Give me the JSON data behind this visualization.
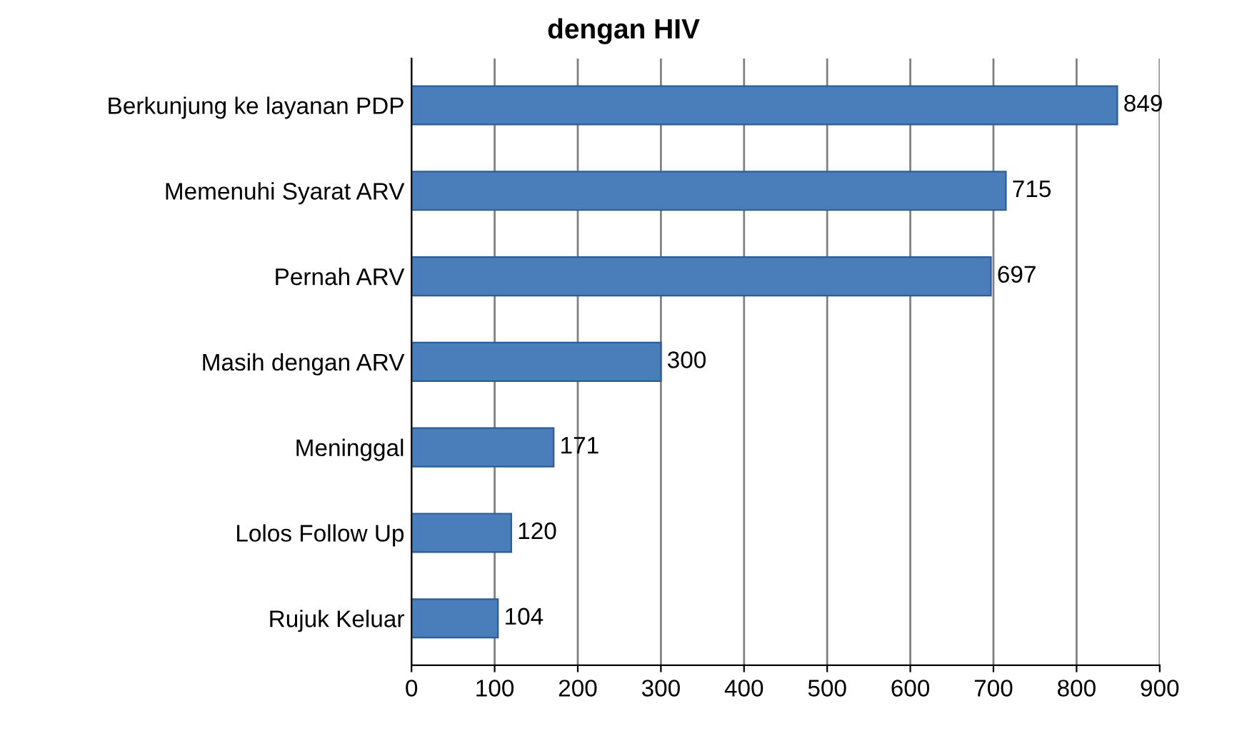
{
  "chart_data": {
    "type": "bar",
    "orientation": "horizontal",
    "title": "dengan HIV",
    "categories": [
      "Berkunjung ke layanan PDP",
      "Memenuhi Syarat ARV",
      "Pernah ARV",
      "Masih dengan ARV",
      "Meninggal",
      "Lolos Follow Up",
      "Rujuk Keluar"
    ],
    "values": [
      849,
      715,
      697,
      300,
      171,
      120,
      104
    ],
    "color": "#4a7ebb",
    "xlim": [
      0,
      900
    ],
    "xticks": [
      0,
      100,
      200,
      300,
      400,
      500,
      600,
      700,
      800,
      900
    ],
    "grid": "x",
    "data_labels": true
  }
}
